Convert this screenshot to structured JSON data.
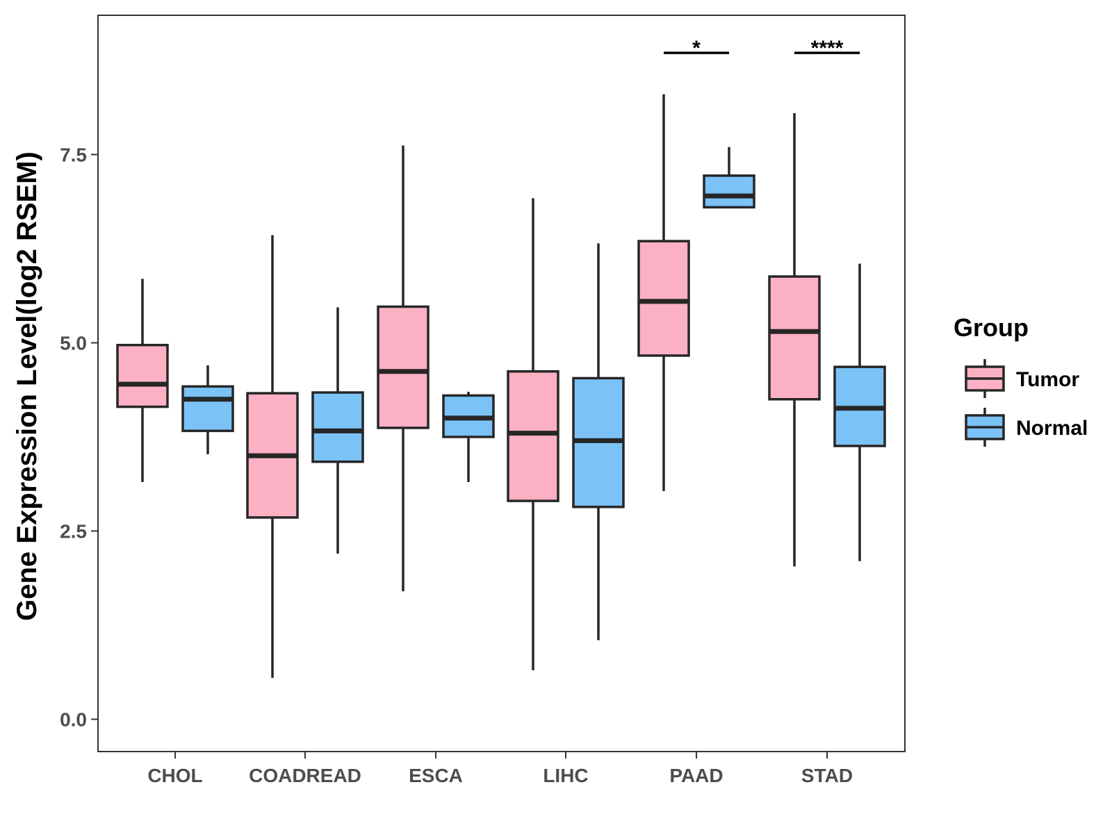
{
  "chart_data": {
    "type": "boxplot",
    "title": "",
    "xlabel": "",
    "ylabel": "Gene Expression Level(log2 RSEM)",
    "ylim": [
      -0.4,
      9.35
    ],
    "yticks": [
      0.0,
      2.5,
      5.0,
      7.5
    ],
    "ytick_labels": [
      "0.0",
      "2.5",
      "5.0",
      "7.5"
    ],
    "categories": [
      "CHOL",
      "COADREAD",
      "ESCA",
      "LIHC",
      "PAAD",
      "STAD"
    ],
    "series": [
      {
        "name": "Tumor",
        "color": "#fbb1c3",
        "boxes": [
          {
            "min": 3.15,
            "q1": 4.15,
            "median": 4.45,
            "q3": 4.97,
            "max": 5.85
          },
          {
            "min": 0.55,
            "q1": 2.68,
            "median": 3.5,
            "q3": 4.33,
            "max": 6.43
          },
          {
            "min": 1.7,
            "q1": 3.87,
            "median": 4.62,
            "q3": 5.48,
            "max": 7.62
          },
          {
            "min": 0.65,
            "q1": 2.9,
            "median": 3.8,
            "q3": 4.62,
            "max": 6.92
          },
          {
            "min": 3.03,
            "q1": 4.83,
            "median": 5.55,
            "q3": 6.35,
            "max": 8.3
          },
          {
            "min": 2.03,
            "q1": 4.25,
            "median": 5.15,
            "q3": 5.88,
            "max": 8.05
          }
        ]
      },
      {
        "name": "Normal",
        "color": "#7bc2f7",
        "boxes": [
          {
            "min": 3.52,
            "q1": 3.83,
            "median": 4.25,
            "q3": 4.42,
            "max": 4.7
          },
          {
            "min": 2.2,
            "q1": 3.42,
            "median": 3.83,
            "q3": 4.34,
            "max": 5.47
          },
          {
            "min": 3.15,
            "q1": 3.75,
            "median": 4.0,
            "q3": 4.3,
            "max": 4.35
          },
          {
            "min": 1.05,
            "q1": 2.82,
            "median": 3.7,
            "q3": 4.53,
            "max": 6.32
          },
          {
            "min": 6.8,
            "q1": 6.8,
            "median": 6.95,
            "q3": 7.22,
            "max": 7.6
          },
          {
            "min": 2.1,
            "q1": 3.63,
            "median": 4.13,
            "q3": 4.68,
            "max": 6.05
          }
        ]
      }
    ],
    "significance": [
      {
        "category": "PAAD",
        "label": "*",
        "y": 8.85
      },
      {
        "category": "STAD",
        "label": "****",
        "y": 8.85
      }
    ],
    "legend": {
      "title": "Group",
      "position": "right",
      "entries": [
        "Tumor",
        "Normal"
      ]
    },
    "grid": false
  }
}
